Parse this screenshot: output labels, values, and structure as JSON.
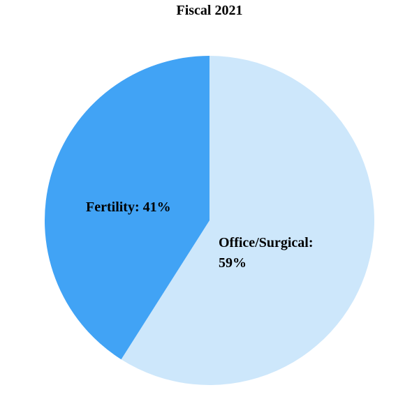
{
  "chart_data": {
    "type": "pie",
    "title": "Fiscal 2021",
    "categories": [
      "Office/Surgical",
      "Fertility"
    ],
    "values": [
      59,
      41
    ],
    "colors": [
      "#cde7fb",
      "#41a3f5"
    ],
    "unit": "%",
    "start_angle": "12 o'clock",
    "direction": "clockwise",
    "legend": "none",
    "labels": {
      "fertility": "Fertility: 41%",
      "office_surgical": "Office/Surgical: 59%"
    }
  }
}
